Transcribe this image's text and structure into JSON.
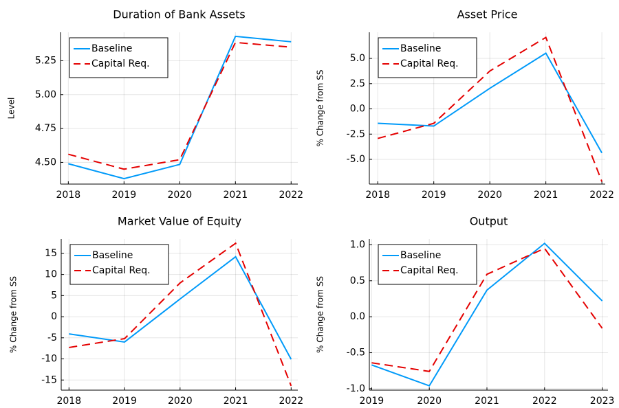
{
  "chart_data": [
    {
      "type": "line",
      "title": "Duration of Bank Assets",
      "ylabel": "Level",
      "legend": "top-left",
      "grid": true,
      "x": [
        2018,
        2019,
        2020,
        2021,
        2022
      ],
      "xlim": [
        2017.86,
        2022.12
      ],
      "xticks": [
        2018,
        2019,
        2020,
        2021,
        2022
      ],
      "ylim": [
        4.34,
        5.46
      ],
      "yticks": [
        {
          "value": 4.5,
          "label": "4.50"
        },
        4.75,
        {
          "value": 5.0,
          "label": "5.00"
        },
        5.25
      ],
      "series": [
        {
          "name": "Baseline",
          "color": "#009af9",
          "linestyle": "solid",
          "values": [
            4.49,
            4.38,
            4.485,
            5.43,
            5.39
          ]
        },
        {
          "name": "Capital Req.",
          "color": "#e40000",
          "linestyle": "dashed",
          "values": [
            4.56,
            4.45,
            4.52,
            5.385,
            5.35
          ]
        }
      ]
    },
    {
      "type": "line",
      "title": "Asset Price",
      "ylabel": "% Change from SS",
      "legend": "top-left",
      "grid": true,
      "x": [
        2018,
        2019,
        2020,
        2021,
        2022
      ],
      "xlim": [
        2017.85,
        2022.06
      ],
      "xticks": [
        2018,
        2019,
        2020,
        2021,
        2022
      ],
      "ylim": [
        -7.45,
        7.59
      ],
      "yticks": [
        {
          "value": -5.0,
          "label": "-5.0"
        },
        -2.5,
        {
          "value": 0.0,
          "label": "0.0"
        },
        2.5,
        {
          "value": 5.0,
          "label": "5.0"
        }
      ],
      "series": [
        {
          "name": "Baseline",
          "color": "#009af9",
          "linestyle": "solid",
          "values": [
            -1.43,
            -1.7,
            2.04,
            5.52,
            -4.36
          ]
        },
        {
          "name": "Capital Req.",
          "color": "#e40000",
          "linestyle": "dashed",
          "values": [
            -2.93,
            -1.43,
            3.75,
            7.08,
            -7.2
          ]
        }
      ]
    },
    {
      "type": "line",
      "title": "Market Value of Equity",
      "ylabel": "% Change from SS",
      "legend": "top-left",
      "grid": true,
      "x": [
        2018,
        2019,
        2020,
        2021,
        2022
      ],
      "xlim": [
        2017.86,
        2022.12
      ],
      "xticks": [
        2018,
        2019,
        2020,
        2021,
        2022
      ],
      "ylim": [
        -17.4,
        18.4
      ],
      "yticks": [
        -15,
        -10,
        -5,
        0,
        5,
        10,
        15
      ],
      "series": [
        {
          "name": "Baseline",
          "color": "#009af9",
          "linestyle": "solid",
          "values": [
            -4.07,
            -6.0,
            4.2,
            14.2,
            -10.1
          ]
        },
        {
          "name": "Capital Req.",
          "color": "#e40000",
          "linestyle": "dashed",
          "values": [
            -7.3,
            -5.2,
            8.0,
            17.4,
            -16.4
          ]
        }
      ]
    },
    {
      "type": "line",
      "title": "Output",
      "ylabel": "% Change from SS",
      "legend": "top-left",
      "grid": true,
      "x": [
        2019,
        2020,
        2021,
        2022,
        2023
      ],
      "xlim": [
        2018.96,
        2023.1
      ],
      "xticks": [
        2019,
        2020,
        2021,
        2022,
        2023
      ],
      "ylim": [
        -1.02,
        1.08
      ],
      "yticks": [
        {
          "value": -1.0,
          "label": "-1.0"
        },
        -0.5,
        {
          "value": 0.0,
          "label": "0.0"
        },
        0.5,
        {
          "value": 1.0,
          "label": "1.0"
        }
      ],
      "series": [
        {
          "name": "Baseline",
          "color": "#009af9",
          "linestyle": "solid",
          "values": [
            -0.67,
            -0.96,
            0.37,
            1.02,
            0.22
          ]
        },
        {
          "name": "Capital Req.",
          "color": "#e40000",
          "linestyle": "dashed",
          "values": [
            -0.64,
            -0.76,
            0.59,
            0.95,
            -0.16
          ]
        }
      ]
    }
  ]
}
